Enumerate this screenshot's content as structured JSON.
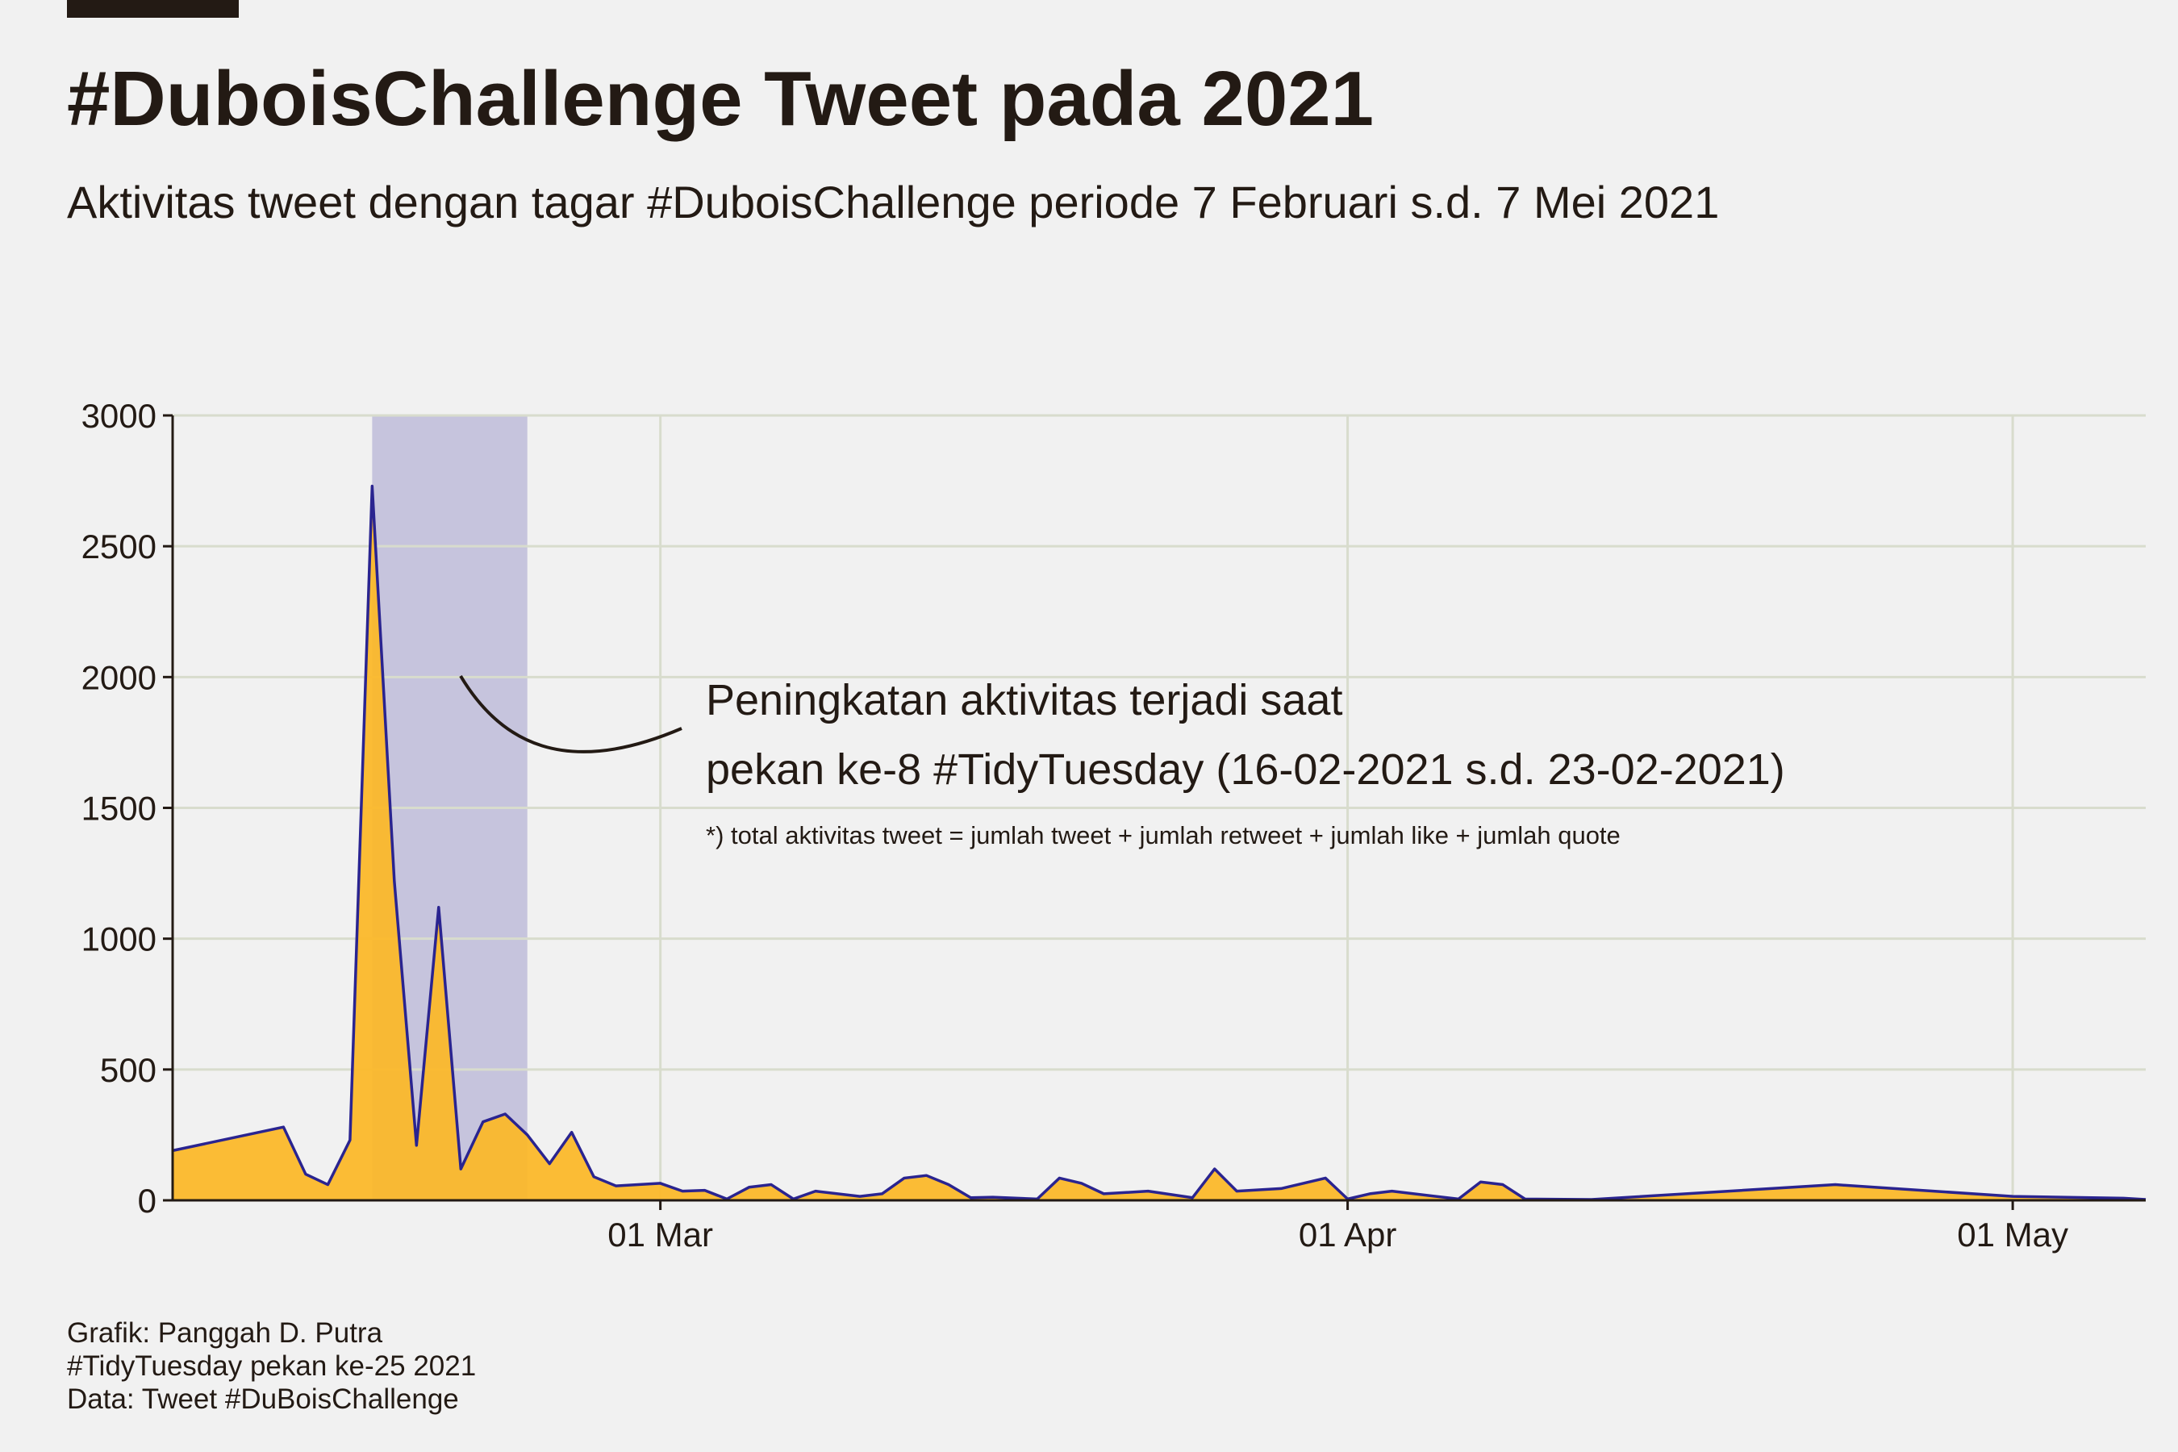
{
  "title": "#DuboisChallenge Tweet pada 2021",
  "subtitle": "Aktivitas tweet dengan tagar #DuboisChallenge periode 7 Februari s.d. 7 Mei 2021",
  "annotation": {
    "line1": "Peningkatan aktivitas terjadi saat",
    "line2": "pekan ke-8 #TidyTuesday (16-02-2021 s.d. 23-02-2021)",
    "footnote": "*) total aktivitas tweet = jumlah tweet + jumlah retweet + jumlah like + jumlah quote"
  },
  "caption": {
    "line1": "Grafik: Panggah D. Putra",
    "line2": "#TidyTuesday pekan ke-25 2021",
    "line3": "Data: Tweet #DuBoisChallenge"
  },
  "colors": {
    "background": "#f1f1f1",
    "area_fill": "#fcb827",
    "line": "#2a2490",
    "highlight": "#c6c4dd",
    "grid": "#d8dccd",
    "text": "#231a14"
  },
  "chart_data": {
    "type": "area",
    "title": "#DuboisChallenge Tweet pada 2021",
    "xlabel": "",
    "ylabel": "",
    "x_range": [
      "2021-02-07",
      "2021-05-07"
    ],
    "ylim": [
      0,
      3000
    ],
    "y_ticks": [
      0,
      500,
      1000,
      1500,
      2000,
      2500,
      3000
    ],
    "x_ticks": [
      {
        "date": "2021-03-01",
        "label": "01 Mar"
      },
      {
        "date": "2021-04-01",
        "label": "01 Apr"
      },
      {
        "date": "2021-05-01",
        "label": "01 May"
      }
    ],
    "highlight": {
      "start": "2021-02-16",
      "end": "2021-02-23"
    },
    "grid": true,
    "series": [
      {
        "points": [
          [
            "2021-02-07",
            190
          ],
          [
            "2021-02-12",
            280
          ],
          [
            "2021-02-13",
            100
          ],
          [
            "2021-02-14",
            60
          ],
          [
            "2021-02-15",
            230
          ],
          [
            "2021-02-16",
            2730
          ],
          [
            "2021-02-17",
            1220
          ],
          [
            "2021-02-18",
            210
          ],
          [
            "2021-02-19",
            1120
          ],
          [
            "2021-02-20",
            120
          ],
          [
            "2021-02-21",
            300
          ],
          [
            "2021-02-22",
            330
          ],
          [
            "2021-02-23",
            250
          ],
          [
            "2021-02-24",
            140
          ],
          [
            "2021-02-25",
            260
          ],
          [
            "2021-02-26",
            90
          ],
          [
            "2021-02-27",
            55
          ],
          [
            "2021-03-01",
            65
          ],
          [
            "2021-03-02",
            35
          ],
          [
            "2021-03-03",
            38
          ],
          [
            "2021-03-04",
            5
          ],
          [
            "2021-03-05",
            50
          ],
          [
            "2021-03-06",
            60
          ],
          [
            "2021-03-07",
            5
          ],
          [
            "2021-03-08",
            35
          ],
          [
            "2021-03-10",
            15
          ],
          [
            "2021-03-11",
            25
          ],
          [
            "2021-03-12",
            85
          ],
          [
            "2021-03-13",
            95
          ],
          [
            "2021-03-14",
            60
          ],
          [
            "2021-03-15",
            10
          ],
          [
            "2021-03-16",
            12
          ],
          [
            "2021-03-18",
            5
          ],
          [
            "2021-03-19",
            85
          ],
          [
            "2021-03-20",
            65
          ],
          [
            "2021-03-21",
            25
          ],
          [
            "2021-03-23",
            35
          ],
          [
            "2021-03-25",
            10
          ],
          [
            "2021-03-26",
            120
          ],
          [
            "2021-03-27",
            35
          ],
          [
            "2021-03-29",
            45
          ],
          [
            "2021-03-31",
            85
          ],
          [
            "2021-04-01",
            5
          ],
          [
            "2021-04-02",
            25
          ],
          [
            "2021-04-03",
            35
          ],
          [
            "2021-04-06",
            5
          ],
          [
            "2021-04-07",
            70
          ],
          [
            "2021-04-08",
            60
          ],
          [
            "2021-04-09",
            5
          ],
          [
            "2021-04-12",
            3
          ],
          [
            "2021-04-23",
            60
          ],
          [
            "2021-05-01",
            15
          ],
          [
            "2021-05-06",
            8
          ],
          [
            "2021-05-07",
            3
          ]
        ]
      }
    ]
  }
}
